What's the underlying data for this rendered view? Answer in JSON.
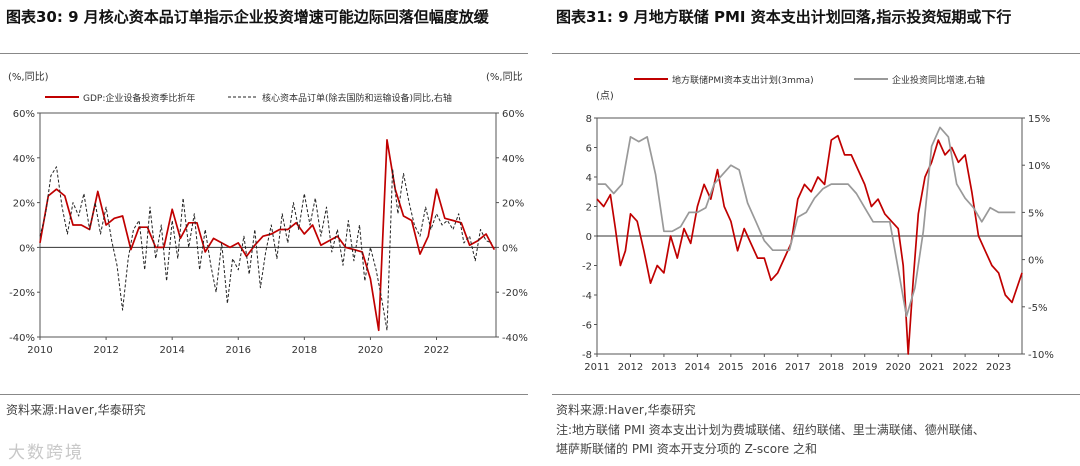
{
  "left": {
    "title": "图表30:  9 月核心资本品订单指示企业投资增速可能边际回落但幅度放缓",
    "source": "资料来源:Haver,华泰研究",
    "chart_data": {
      "type": "line",
      "unit_left": "(%,同比)",
      "unit_right": "(%,同比",
      "y_left": {
        "min": -40,
        "max": 60,
        "ticks": [
          "60%",
          "40%",
          "20%",
          "0%",
          "-20%",
          "-40%"
        ]
      },
      "y_right": {
        "min": -40,
        "max": 60,
        "ticks": [
          "60%",
          "40%",
          "20%",
          "0%",
          "-20%",
          "-40%"
        ]
      },
      "x_ticks": [
        "2010",
        "2012",
        "2014",
        "2016",
        "2018",
        "2020",
        "2022"
      ],
      "x_range": [
        2010,
        2023.8
      ],
      "legend": [
        "GDP:企业设备投资季比折年",
        "核心资本品订单(除去国防和运输设备)同比,右轴"
      ],
      "series": [
        {
          "name": "GDP:企业设备投资季比折年",
          "color": "#c00000",
          "axis": "left",
          "x": [
            2010.0,
            2010.25,
            2010.5,
            2010.75,
            2011.0,
            2011.25,
            2011.5,
            2011.75,
            2012.0,
            2012.25,
            2012.5,
            2012.75,
            2013.0,
            2013.25,
            2013.5,
            2013.75,
            2014.0,
            2014.25,
            2014.5,
            2014.75,
            2015.0,
            2015.25,
            2015.5,
            2015.75,
            2016.0,
            2016.25,
            2016.5,
            2016.75,
            2017.0,
            2017.25,
            2017.5,
            2017.75,
            2018.0,
            2018.25,
            2018.5,
            2018.75,
            2019.0,
            2019.25,
            2019.5,
            2019.75,
            2020.0,
            2020.25,
            2020.5,
            2020.75,
            2021.0,
            2021.25,
            2021.5,
            2021.75,
            2022.0,
            2022.25,
            2022.5,
            2022.75,
            2023.0,
            2023.25,
            2023.5,
            2023.75
          ],
          "y": [
            2,
            23,
            26,
            23,
            10,
            10,
            8,
            25,
            10,
            13,
            14,
            -1,
            9,
            9,
            0,
            0,
            17,
            4,
            11,
            11,
            -2,
            4,
            2,
            0,
            2,
            -4,
            1,
            5,
            6,
            8,
            8,
            11,
            6,
            10,
            1,
            3,
            5,
            0,
            -1,
            -2,
            -14,
            -37,
            48,
            26,
            14,
            12,
            -3,
            5,
            26,
            13,
            12,
            11,
            1,
            3,
            6,
            -1
          ]
        },
        {
          "name": "核心资本品订单(除去国防和运输设备)同比,右轴",
          "color": "#222222",
          "axis": "right",
          "dash": true,
          "x": [
            2010.0,
            2010.17,
            2010.33,
            2010.5,
            2010.67,
            2010.83,
            2011.0,
            2011.17,
            2011.33,
            2011.5,
            2011.67,
            2011.83,
            2012.0,
            2012.17,
            2012.33,
            2012.5,
            2012.67,
            2012.83,
            2013.0,
            2013.17,
            2013.33,
            2013.5,
            2013.67,
            2013.83,
            2014.0,
            2014.17,
            2014.33,
            2014.5,
            2014.67,
            2014.83,
            2015.0,
            2015.17,
            2015.33,
            2015.5,
            2015.67,
            2015.83,
            2016.0,
            2016.17,
            2016.33,
            2016.5,
            2016.67,
            2016.83,
            2017.0,
            2017.17,
            2017.33,
            2017.5,
            2017.67,
            2017.83,
            2018.0,
            2018.17,
            2018.33,
            2018.5,
            2018.67,
            2018.83,
            2019.0,
            2019.17,
            2019.33,
            2019.5,
            2019.67,
            2019.83,
            2020.0,
            2020.17,
            2020.33,
            2020.5,
            2020.67,
            2020.83,
            2021.0,
            2021.17,
            2021.33,
            2021.5,
            2021.67,
            2021.83,
            2022.0,
            2022.17,
            2022.33,
            2022.5,
            2022.67,
            2022.83,
            2023.0,
            2023.17,
            2023.33,
            2023.5,
            2023.67
          ],
          "y": [
            5,
            15,
            32,
            36,
            18,
            6,
            20,
            14,
            24,
            8,
            20,
            6,
            18,
            3,
            -8,
            -28,
            -5,
            8,
            12,
            -10,
            18,
            -5,
            10,
            -15,
            12,
            -5,
            22,
            0,
            15,
            -10,
            8,
            -8,
            -20,
            2,
            -25,
            -5,
            -10,
            5,
            -12,
            8,
            -18,
            -2,
            10,
            -5,
            15,
            2,
            20,
            8,
            24,
            10,
            22,
            5,
            18,
            -2,
            8,
            -8,
            12,
            -6,
            10,
            -15,
            0,
            -10,
            -22,
            -37,
            35,
            15,
            33,
            20,
            10,
            5,
            18,
            8,
            15,
            10,
            12,
            8,
            15,
            2,
            5,
            -6,
            8,
            3,
            2
          ]
        }
      ]
    }
  },
  "right": {
    "title": "图表31:  9 月地方联储 PMI 资本支出计划回落,指示投资短期或下行",
    "source": "资料来源:Haver,华泰研究",
    "note_line1": "注:地方联储 PMI 资本支出计划为费城联储、纽约联储、里士满联储、德州联储、",
    "note_line2": "堪萨斯联储的 PMI 资本开支分项的 Z-score 之和",
    "chart_data": {
      "type": "line",
      "unit_left": "(点)",
      "y_left": {
        "min": -8,
        "max": 8,
        "ticks": [
          "8",
          "6",
          "4",
          "2",
          "0",
          "-2",
          "-4",
          "-6",
          "-8"
        ]
      },
      "y_right": {
        "min": -10,
        "max": 15,
        "ticks": [
          "15%",
          "10%",
          "5%",
          "0%",
          "-5%",
          "-10%"
        ]
      },
      "x_ticks": [
        "2011",
        "2012",
        "2013",
        "2014",
        "2015",
        "2016",
        "2017",
        "2018",
        "2019",
        "2020",
        "2021",
        "2022",
        "2023"
      ],
      "x_range": [
        2011,
        2023.7
      ],
      "legend": [
        "地方联储PMI资本支出计划(3mma)",
        "企业投资同比增速,右轴"
      ],
      "series": [
        {
          "name": "地方联储PMI资本支出计划(3mma)",
          "color": "#c00000",
          "axis": "left",
          "x": [
            2011.0,
            2011.2,
            2011.4,
            2011.55,
            2011.7,
            2011.85,
            2012.0,
            2012.2,
            2012.4,
            2012.6,
            2012.8,
            2013.0,
            2013.2,
            2013.4,
            2013.6,
            2013.8,
            2014.0,
            2014.2,
            2014.4,
            2014.6,
            2014.8,
            2015.0,
            2015.2,
            2015.4,
            2015.6,
            2015.8,
            2016.0,
            2016.2,
            2016.4,
            2016.6,
            2016.8,
            2017.0,
            2017.2,
            2017.4,
            2017.6,
            2017.8,
            2018.0,
            2018.2,
            2018.4,
            2018.6,
            2018.8,
            2019.0,
            2019.2,
            2019.4,
            2019.6,
            2019.8,
            2020.0,
            2020.15,
            2020.3,
            2020.45,
            2020.6,
            2020.8,
            2021.0,
            2021.2,
            2021.4,
            2021.6,
            2021.8,
            2022.0,
            2022.2,
            2022.4,
            2022.6,
            2022.8,
            2023.0,
            2023.2,
            2023.4,
            2023.55,
            2023.7
          ],
          "y": [
            2.5,
            2.0,
            2.8,
            0.5,
            -2.0,
            -1.0,
            1.5,
            1.0,
            -1.0,
            -3.2,
            -2.0,
            -2.5,
            0.0,
            -1.5,
            0.5,
            -0.5,
            2.0,
            3.5,
            2.5,
            4.5,
            2.0,
            1.0,
            -1.0,
            0.5,
            -0.5,
            -1.5,
            -1.5,
            -3.0,
            -2.5,
            -1.5,
            -0.5,
            2.5,
            3.5,
            3.0,
            4.0,
            3.5,
            6.5,
            6.8,
            5.5,
            5.5,
            4.5,
            3.5,
            2.0,
            2.5,
            1.5,
            1.0,
            0.5,
            -2.0,
            -8.0,
            -3.0,
            1.5,
            4.0,
            5.0,
            6.5,
            5.5,
            6.0,
            5.0,
            5.5,
            3.0,
            0.0,
            -1.0,
            -2.0,
            -2.5,
            -4.0,
            -4.5,
            -3.5,
            -2.5
          ]
        },
        {
          "name": "企业投资同比增速,右轴",
          "color": "#999999",
          "axis": "right",
          "x": [
            2011.0,
            2011.25,
            2011.5,
            2011.75,
            2012.0,
            2012.25,
            2012.5,
            2012.75,
            2013.0,
            2013.25,
            2013.5,
            2013.75,
            2014.0,
            2014.25,
            2014.5,
            2014.75,
            2015.0,
            2015.25,
            2015.5,
            2015.75,
            2016.0,
            2016.25,
            2016.5,
            2016.75,
            2017.0,
            2017.25,
            2017.5,
            2017.75,
            2018.0,
            2018.25,
            2018.5,
            2018.75,
            2019.0,
            2019.25,
            2019.5,
            2019.75,
            2020.0,
            2020.25,
            2020.5,
            2020.75,
            2021.0,
            2021.25,
            2021.5,
            2021.75,
            2022.0,
            2022.25,
            2022.5,
            2022.75,
            2023.0,
            2023.25,
            2023.5
          ],
          "y": [
            8.0,
            8.0,
            7.0,
            8.0,
            13.0,
            12.5,
            13.0,
            9.0,
            3.0,
            3.0,
            3.5,
            5.0,
            5.0,
            5.5,
            8.0,
            9.0,
            10.0,
            9.5,
            6.0,
            4.0,
            2.0,
            1.0,
            1.0,
            1.0,
            4.5,
            5.0,
            6.5,
            7.5,
            8.0,
            8.0,
            8.0,
            7.0,
            5.5,
            4.0,
            4.0,
            4.0,
            -1.0,
            -6.0,
            -3.0,
            3.0,
            12.0,
            14.0,
            13.0,
            8.0,
            6.5,
            5.5,
            4.0,
            5.5,
            5.0,
            5.0,
            5.0
          ]
        }
      ]
    }
  },
  "watermark": "大数跨境"
}
